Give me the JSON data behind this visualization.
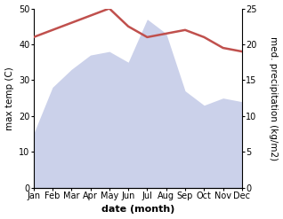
{
  "months": [
    "Jan",
    "Feb",
    "Mar",
    "Apr",
    "May",
    "Jun",
    "Jul",
    "Aug",
    "Sep",
    "Oct",
    "Nov",
    "Dec"
  ],
  "max_temp": [
    15,
    28,
    33,
    37,
    38,
    35,
    47,
    43,
    27,
    23,
    25,
    24
  ],
  "precipitation": [
    21,
    22,
    23,
    24,
    25,
    22.5,
    21,
    21.5,
    22,
    21,
    19.5,
    19
  ],
  "temp_color": "#c0504d",
  "fill_color": "#c6cce8",
  "fill_alpha": 0.9,
  "temp_ylim": [
    0,
    50
  ],
  "precip_ylim": [
    0,
    25
  ],
  "xlabel": "date (month)",
  "ylabel_left": "max temp (C)",
  "ylabel_right": "med. precipitation (kg/m2)",
  "xlabel_fontsize": 8,
  "ylabel_fontsize": 7.5,
  "tick_fontsize": 7,
  "linewidth": 1.8,
  "bg_color": "#f0f0f0"
}
